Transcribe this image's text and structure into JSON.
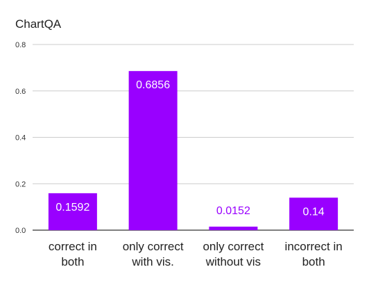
{
  "chart_data": {
    "type": "bar",
    "title": "ChartQA",
    "categories": [
      [
        "correct in",
        "both"
      ],
      [
        "only correct",
        "with vis."
      ],
      [
        "only correct",
        "without vis"
      ],
      [
        "incorrect in",
        "both"
      ]
    ],
    "values": [
      0.1592,
      0.6856,
      0.0152,
      0.14
    ],
    "data_labels": [
      "0.1592",
      "0.6856",
      "0.0152",
      "0.14"
    ],
    "ylim": [
      0,
      0.8
    ],
    "yticks": [
      "0.0",
      "0.2",
      "0.4",
      "0.6",
      "0.8"
    ],
    "grid": true,
    "colors": {
      "bar": "#9900ff",
      "label_inside": "#ffffff",
      "label_outside": "#9900ff",
      "grid": "#cccccc",
      "baseline": "#333333"
    }
  }
}
